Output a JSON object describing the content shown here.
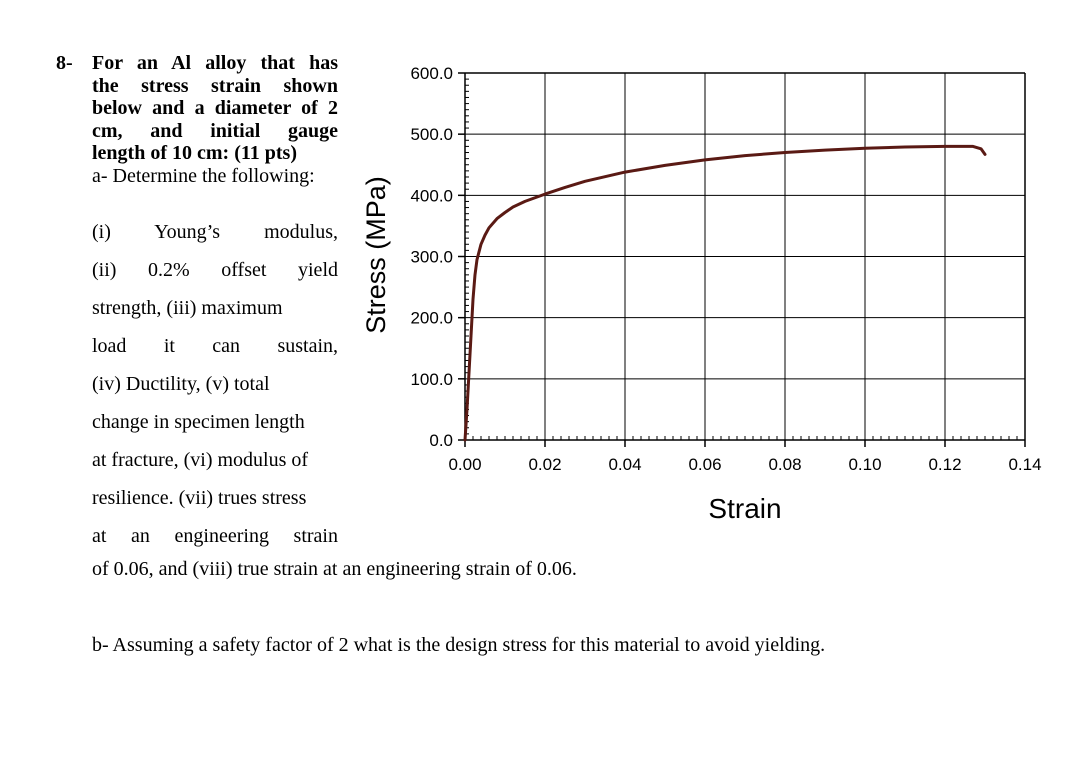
{
  "question": {
    "number": "8-",
    "bold_lines": [
      "For an Al alloy that has",
      "the stress strain shown",
      "below and a diameter of 2",
      "cm, and initial gauge",
      "length of 10 cm:   (11 pts)"
    ],
    "part_a_heading": "a- Determine the following:",
    "part_a_lines": [
      "(i) Young’s modulus,",
      "(ii) 0.2% offset yield",
      "strength, (iii) maximum",
      "load it can sustain,",
      "(iv) Ductility, (v) total",
      "change in specimen length",
      "at fracture, (vi) modulus of",
      "resilience. (vii) trues stress",
      "at an engineering strain"
    ],
    "part_a_last_line": "of 0.06, and (viii) true strain at an engineering strain of 0.06.",
    "part_b": "b- Assuming a safety factor of 2 what is the design stress for this material to avoid yielding."
  },
  "chart_data": {
    "type": "line",
    "xlabel": "Strain",
    "ylabel": "Stress (MPa)",
    "xlim": [
      0,
      0.14
    ],
    "ylim": [
      0,
      600
    ],
    "x_ticks": [
      "0.00",
      "0.02",
      "0.04",
      "0.06",
      "0.08",
      "0.10",
      "0.12",
      "0.14"
    ],
    "y_ticks": [
      "0.0",
      "100.0",
      "200.0",
      "300.0",
      "400.0",
      "500.0",
      "600.0"
    ],
    "grid": true,
    "line_color": "#5a1a14",
    "series": [
      {
        "x": [
          0.0,
          0.0005,
          0.001,
          0.0015,
          0.002,
          0.0025,
          0.003,
          0.004,
          0.005,
          0.006,
          0.008,
          0.01,
          0.012,
          0.015,
          0.02,
          0.025,
          0.03,
          0.04,
          0.05,
          0.06,
          0.07,
          0.08,
          0.09,
          0.1,
          0.11,
          0.12,
          0.127,
          0.129,
          0.13
        ],
        "y": [
          0,
          50,
          110,
          170,
          230,
          270,
          295,
          320,
          335,
          347,
          362,
          372,
          381,
          390,
          402,
          413,
          423,
          438,
          449,
          458,
          465,
          470,
          474,
          477,
          479,
          480,
          480,
          476,
          467
        ]
      }
    ]
  }
}
